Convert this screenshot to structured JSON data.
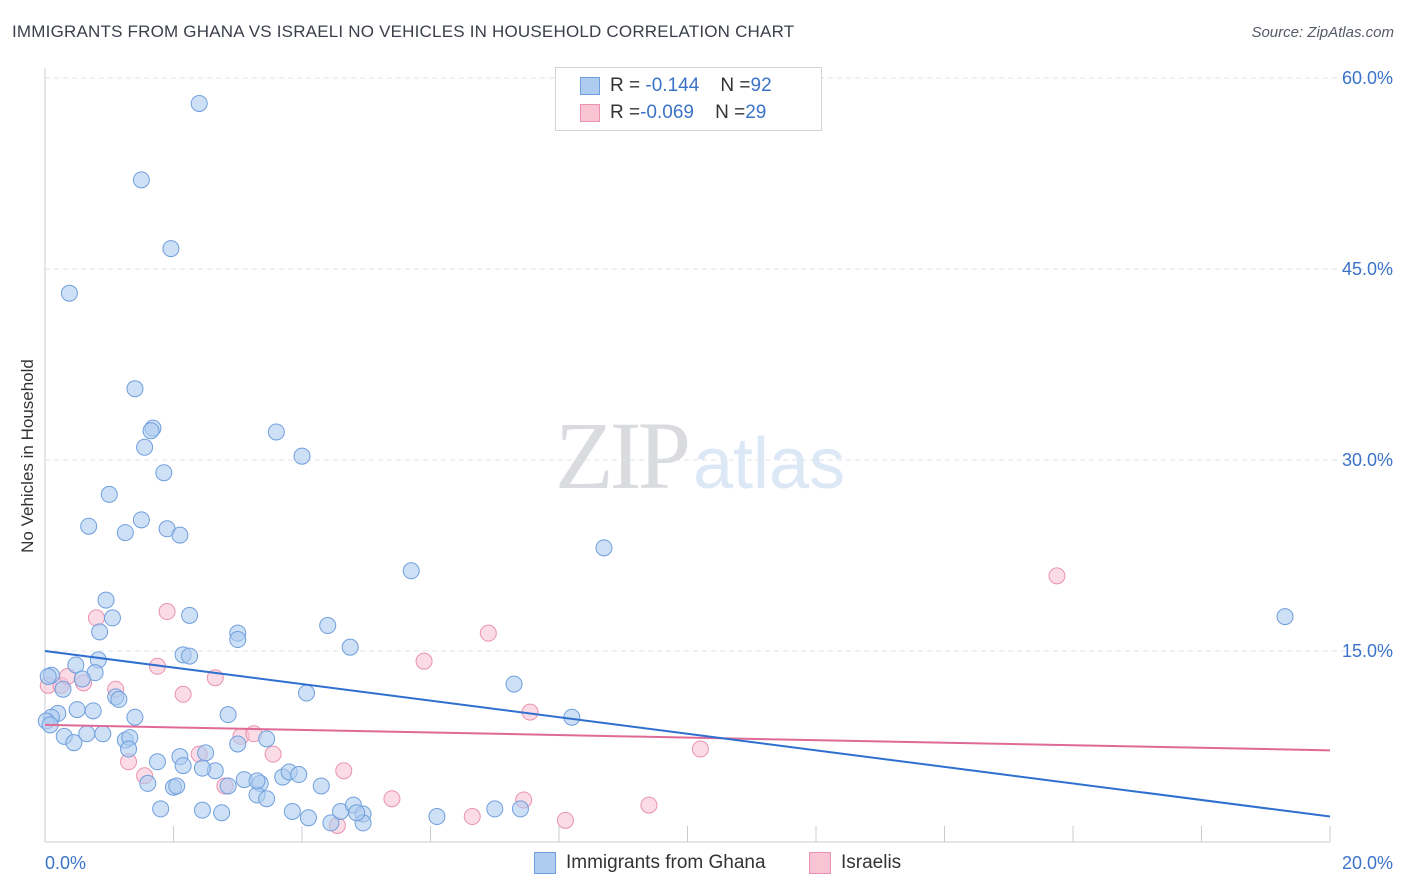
{
  "title": "IMMIGRANTS FROM GHANA VS ISRAELI NO VEHICLES IN HOUSEHOLD CORRELATION CHART",
  "source": "Source: ZipAtlas.com",
  "watermark": {
    "zip": "ZIP",
    "atlas": "atlas"
  },
  "legend": {
    "rows": [
      {
        "r_label": "R = ",
        "r_value": "-0.144",
        "n_label": "N = ",
        "n_value": "92"
      },
      {
        "r_label": "R = ",
        "r_value": "-0.069",
        "n_label": "N = ",
        "n_value": "29"
      }
    ]
  },
  "colors": {
    "ghana_fill": "#aecbf0",
    "ghana_stroke": "#6f9fdc",
    "ghana_line": "#2e6fcf",
    "israeli_fill": "#f8c3d3",
    "israeli_stroke": "#e993b0",
    "israeli_line": "#e06a97",
    "tick_label": "#3b73c9",
    "grid": "#dfe3e8"
  },
  "chart_data": {
    "type": "scatter",
    "title": "IMMIGRANTS FROM GHANA VS ISRAELI NO VEHICLES IN HOUSEHOLD CORRELATION CHART",
    "xlabel": "",
    "ylabel": "No Vehicles in Household",
    "xlim": [
      0,
      20
    ],
    "ylim": [
      0,
      60
    ],
    "x_tick_labels": [
      "0.0%",
      "20.0%"
    ],
    "y_ticks": [
      15,
      30,
      45,
      60
    ],
    "y_tick_labels": [
      "15.0%",
      "30.0%",
      "45.0%",
      "60.0%"
    ],
    "grid": true,
    "legend_position": "top-center",
    "series": [
      {
        "name": "Immigrants from Ghana",
        "r": -0.144,
        "n": 92,
        "trend": {
          "x": [
            0,
            20
          ],
          "y": [
            15.0,
            2.0
          ]
        },
        "points": [
          [
            2.4,
            58.0
          ],
          [
            1.5,
            52.0
          ],
          [
            1.96,
            46.6
          ],
          [
            0.38,
            43.1
          ],
          [
            1.4,
            35.6
          ],
          [
            1.68,
            32.5
          ],
          [
            1.65,
            32.3
          ],
          [
            3.6,
            32.2
          ],
          [
            4.0,
            30.3
          ],
          [
            1.55,
            31.0
          ],
          [
            1.85,
            29.0
          ],
          [
            1.0,
            27.3
          ],
          [
            1.5,
            25.3
          ],
          [
            0.68,
            24.8
          ],
          [
            1.25,
            24.3
          ],
          [
            1.9,
            24.6
          ],
          [
            2.1,
            24.1
          ],
          [
            8.7,
            23.1
          ],
          [
            5.7,
            21.3
          ],
          [
            19.3,
            17.7
          ],
          [
            0.95,
            19.0
          ],
          [
            1.05,
            17.6
          ],
          [
            2.25,
            17.8
          ],
          [
            0.85,
            16.5
          ],
          [
            3.0,
            16.4
          ],
          [
            4.4,
            17.0
          ],
          [
            3.0,
            15.9
          ],
          [
            4.75,
            15.3
          ],
          [
            2.15,
            14.7
          ],
          [
            2.25,
            14.6
          ],
          [
            0.83,
            14.3
          ],
          [
            0.78,
            13.3
          ],
          [
            0.48,
            13.9
          ],
          [
            0.58,
            12.8
          ],
          [
            0.1,
            13.1
          ],
          [
            0.28,
            12.0
          ],
          [
            4.07,
            11.7
          ],
          [
            7.3,
            12.4
          ],
          [
            1.1,
            11.4
          ],
          [
            1.15,
            11.2
          ],
          [
            0.75,
            10.3
          ],
          [
            0.5,
            10.4
          ],
          [
            0.2,
            10.1
          ],
          [
            0.1,
            9.8
          ],
          [
            1.4,
            9.8
          ],
          [
            2.85,
            10.0
          ],
          [
            8.2,
            9.8
          ],
          [
            0.3,
            8.3
          ],
          [
            0.45,
            7.8
          ],
          [
            0.65,
            8.5
          ],
          [
            0.9,
            8.5
          ],
          [
            1.25,
            8.0
          ],
          [
            1.32,
            8.2
          ],
          [
            1.3,
            7.3
          ],
          [
            3.0,
            7.7
          ],
          [
            3.45,
            8.1
          ],
          [
            2.1,
            6.7
          ],
          [
            2.5,
            7.0
          ],
          [
            2.65,
            5.6
          ],
          [
            2.45,
            5.8
          ],
          [
            2.15,
            6.0
          ],
          [
            3.1,
            4.9
          ],
          [
            3.35,
            4.6
          ],
          [
            3.7,
            5.1
          ],
          [
            3.8,
            5.5
          ],
          [
            3.95,
            5.3
          ],
          [
            1.6,
            4.6
          ],
          [
            2.0,
            4.3
          ],
          [
            2.05,
            4.4
          ],
          [
            2.85,
            4.4
          ],
          [
            3.3,
            3.7
          ],
          [
            3.45,
            3.4
          ],
          [
            4.3,
            4.4
          ],
          [
            1.8,
            2.6
          ],
          [
            2.45,
            2.5
          ],
          [
            2.75,
            2.3
          ],
          [
            3.85,
            2.4
          ],
          [
            4.1,
            1.9
          ],
          [
            4.45,
            1.5
          ],
          [
            4.6,
            2.4
          ],
          [
            4.8,
            2.9
          ],
          [
            4.95,
            2.2
          ],
          [
            4.95,
            1.5
          ],
          [
            4.85,
            2.3
          ],
          [
            6.1,
            2.0
          ],
          [
            7.0,
            2.6
          ],
          [
            7.4,
            2.6
          ],
          [
            0.02,
            9.5
          ],
          [
            0.08,
            9.2
          ],
          [
            0.05,
            13.0
          ],
          [
            3.3,
            4.8
          ],
          [
            1.75,
            6.3
          ]
        ]
      },
      {
        "name": "Israelis",
        "r": -0.069,
        "n": 29,
        "trend": {
          "x": [
            0,
            20
          ],
          "y": [
            9.2,
            7.2
          ]
        },
        "points": [
          [
            0.05,
            12.3
          ],
          [
            0.25,
            12.3
          ],
          [
            0.35,
            13.0
          ],
          [
            0.6,
            12.5
          ],
          [
            0.8,
            17.6
          ],
          [
            1.1,
            12.0
          ],
          [
            1.75,
            13.8
          ],
          [
            1.9,
            18.1
          ],
          [
            2.15,
            11.6
          ],
          [
            2.65,
            12.9
          ],
          [
            5.9,
            14.2
          ],
          [
            6.9,
            16.4
          ],
          [
            7.55,
            10.2
          ],
          [
            15.75,
            20.9
          ],
          [
            10.2,
            7.3
          ],
          [
            1.3,
            6.3
          ],
          [
            1.55,
            5.2
          ],
          [
            2.4,
            6.9
          ],
          [
            2.8,
            4.4
          ],
          [
            3.05,
            8.3
          ],
          [
            3.25,
            8.5
          ],
          [
            3.55,
            6.9
          ],
          [
            4.65,
            5.6
          ],
          [
            5.4,
            3.4
          ],
          [
            7.45,
            3.3
          ],
          [
            6.65,
            2.0
          ],
          [
            8.1,
            1.7
          ],
          [
            9.4,
            2.9
          ],
          [
            4.55,
            1.3
          ]
        ]
      }
    ]
  }
}
